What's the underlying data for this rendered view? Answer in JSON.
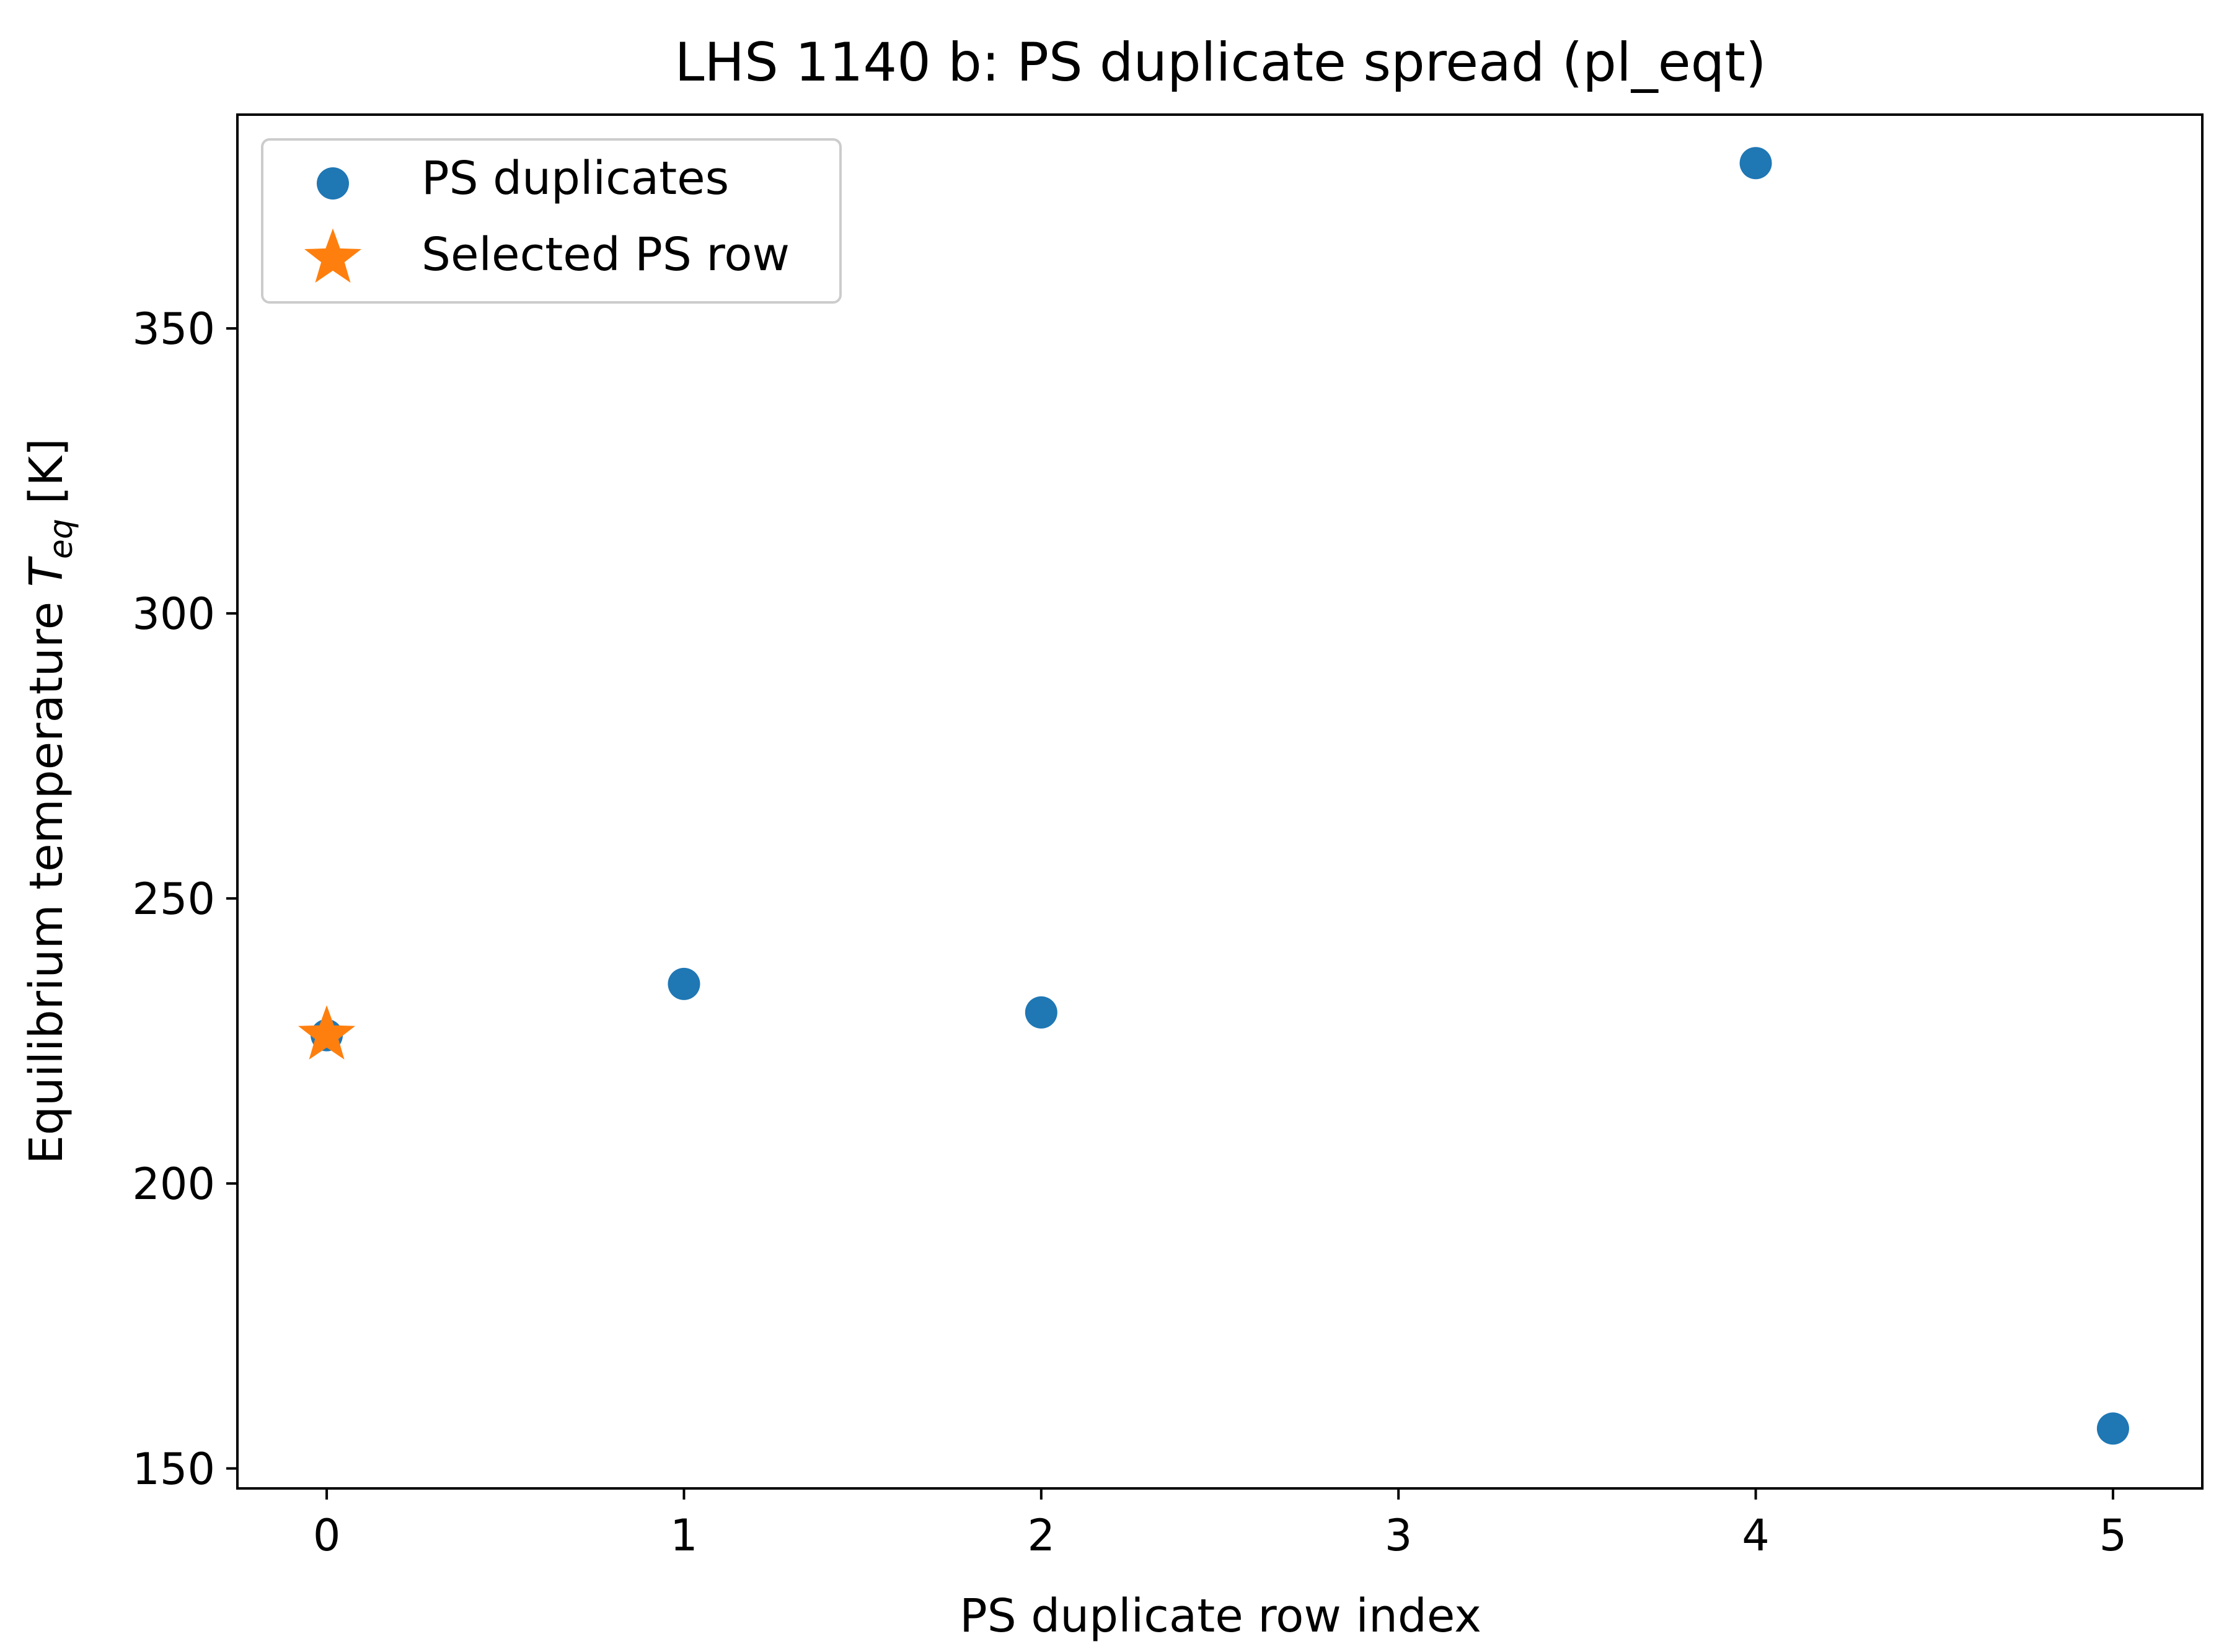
{
  "chart_data": {
    "type": "scatter",
    "title": "LHS 1140 b: PS duplicate spread (pl_eqt)",
    "xlabel": "PS duplicate row index",
    "ylabel_prefix": "Equilibrium temperature ",
    "ylabel_symbol": "T",
    "ylabel_subscript": "eq",
    "ylabel_suffix": " [K]",
    "xlim": [
      -0.25,
      5.25
    ],
    "ylim": [
      146.5,
      387.5
    ],
    "xticks": [
      0,
      1,
      2,
      3,
      4,
      5
    ],
    "yticks": [
      150,
      200,
      250,
      300,
      350
    ],
    "grid": false,
    "legend_position": "top-left",
    "series": [
      {
        "name": "PS duplicates",
        "marker": "circle",
        "color": "#1f77b4",
        "x": [
          0,
          1,
          2,
          4,
          5
        ],
        "y": [
          226,
          235,
          230,
          379,
          157
        ]
      },
      {
        "name": "Selected PS row",
        "marker": "star",
        "color": "#ff7f0e",
        "x": [
          0
        ],
        "y": [
          226
        ]
      }
    ]
  }
}
